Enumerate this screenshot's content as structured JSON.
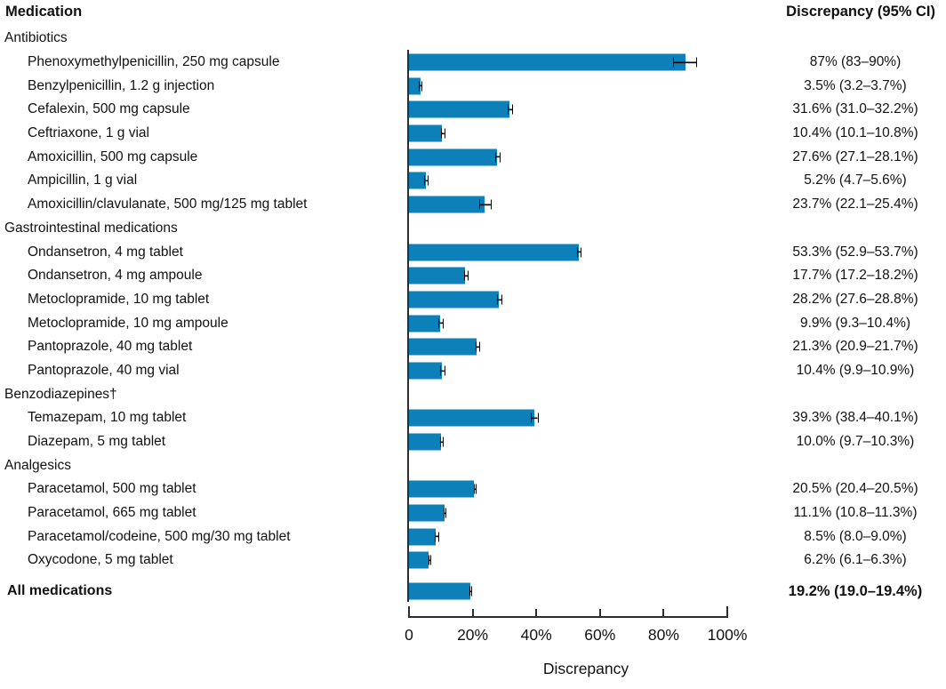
{
  "header": {
    "left": "Medication",
    "right": "Discrepancy (95% CI)"
  },
  "chart_data": {
    "type": "bar",
    "orientation": "horizontal",
    "title": "",
    "xlabel": "Discrepancy",
    "ylabel": "",
    "xlim": [
      0,
      100
    ],
    "grid": false,
    "bar_color": "#0e80b9",
    "error_bar_color": "#000000",
    "x_ticks": [
      {
        "value": 0,
        "label": "0"
      },
      {
        "value": 20,
        "label": "20%"
      },
      {
        "value": 40,
        "label": "40%"
      },
      {
        "value": 60,
        "label": "60%"
      },
      {
        "value": 80,
        "label": "80%"
      },
      {
        "value": 100,
        "label": "100%"
      }
    ],
    "rows": [
      {
        "kind": "group",
        "label": "Antibiotics"
      },
      {
        "kind": "item",
        "label": "Phenoxymethylpenicillin, 250 mg capsule",
        "value": 87,
        "ci_low": 83,
        "ci_high": 90,
        "value_label": "87% (83–90%)"
      },
      {
        "kind": "item",
        "label": "Benzylpenicillin, 1.2 g injection",
        "value": 3.5,
        "ci_low": 3.2,
        "ci_high": 3.7,
        "value_label": "3.5% (3.2–3.7%)"
      },
      {
        "kind": "item",
        "label": "Cefalexin, 500 mg capsule",
        "value": 31.6,
        "ci_low": 31.0,
        "ci_high": 32.2,
        "value_label": "31.6% (31.0–32.2%)"
      },
      {
        "kind": "item",
        "label": "Ceftriaxone, 1 g vial",
        "value": 10.4,
        "ci_low": 10.1,
        "ci_high": 10.8,
        "value_label": "10.4% (10.1–10.8%)"
      },
      {
        "kind": "item",
        "label": "Amoxicillin, 500 mg capsule",
        "value": 27.6,
        "ci_low": 27.1,
        "ci_high": 28.1,
        "value_label": "27.6% (27.1–28.1%)"
      },
      {
        "kind": "item",
        "label": "Ampicillin, 1 g vial",
        "value": 5.2,
        "ci_low": 4.7,
        "ci_high": 5.6,
        "value_label": "5.2% (4.7–5.6%)"
      },
      {
        "kind": "item",
        "label": "Amoxicillin/clavulanate, 500 mg/125 mg tablet",
        "value": 23.7,
        "ci_low": 22.1,
        "ci_high": 25.4,
        "value_label": "23.7% (22.1–25.4%)"
      },
      {
        "kind": "group",
        "label": "Gastrointestinal medications"
      },
      {
        "kind": "item",
        "label": "Ondansetron, 4 mg tablet",
        "value": 53.3,
        "ci_low": 52.9,
        "ci_high": 53.7,
        "value_label": "53.3% (52.9–53.7%)"
      },
      {
        "kind": "item",
        "label": "Ondansetron, 4 mg ampoule",
        "value": 17.7,
        "ci_low": 17.2,
        "ci_high": 18.2,
        "value_label": "17.7% (17.2–18.2%)"
      },
      {
        "kind": "item",
        "label": "Metoclopramide, 10 mg tablet",
        "value": 28.2,
        "ci_low": 27.6,
        "ci_high": 28.8,
        "value_label": "28.2% (27.6–28.8%)"
      },
      {
        "kind": "item",
        "label": "Metoclopramide, 10 mg ampoule",
        "value": 9.9,
        "ci_low": 9.3,
        "ci_high": 10.4,
        "value_label": "9.9% (9.3–10.4%)"
      },
      {
        "kind": "item",
        "label": "Pantoprazole, 40 mg tablet",
        "value": 21.3,
        "ci_low": 20.9,
        "ci_high": 21.7,
        "value_label": "21.3% (20.9–21.7%)"
      },
      {
        "kind": "item",
        "label": "Pantoprazole, 40 mg vial",
        "value": 10.4,
        "ci_low": 9.9,
        "ci_high": 10.9,
        "value_label": "10.4% (9.9–10.9%)"
      },
      {
        "kind": "group",
        "label": "Benzodiazepines†"
      },
      {
        "kind": "item",
        "label": "Temazepam, 10 mg tablet",
        "value": 39.3,
        "ci_low": 38.4,
        "ci_high": 40.1,
        "value_label": "39.3% (38.4–40.1%)"
      },
      {
        "kind": "item",
        "label": "Diazepam, 5 mg tablet",
        "value": 10.0,
        "ci_low": 9.7,
        "ci_high": 10.3,
        "value_label": "10.0% (9.7–10.3%)"
      },
      {
        "kind": "group",
        "label": "Analgesics"
      },
      {
        "kind": "item",
        "label": "Paracetamol, 500 mg tablet",
        "value": 20.5,
        "ci_low": 20.4,
        "ci_high": 20.5,
        "value_label": "20.5% (20.4–20.5%)"
      },
      {
        "kind": "item",
        "label": "Paracetamol, 665 mg tablet",
        "value": 11.1,
        "ci_low": 10.8,
        "ci_high": 11.3,
        "value_label": "11.1% (10.8–11.3%)"
      },
      {
        "kind": "item",
        "label": "Paracetamol/codeine, 500 mg/30 mg tablet",
        "value": 8.5,
        "ci_low": 8.0,
        "ci_high": 9.0,
        "value_label": "8.5% (8.0–9.0%)"
      },
      {
        "kind": "item",
        "label": "Oxycodone, 5 mg tablet",
        "value": 6.2,
        "ci_low": 6.1,
        "ci_high": 6.3,
        "value_label": "6.2% (6.1–6.3%)"
      },
      {
        "kind": "total",
        "label": "All medications",
        "value": 19.2,
        "ci_low": 19.0,
        "ci_high": 19.4,
        "value_label": "19.2% (19.0–19.4%)"
      }
    ]
  }
}
